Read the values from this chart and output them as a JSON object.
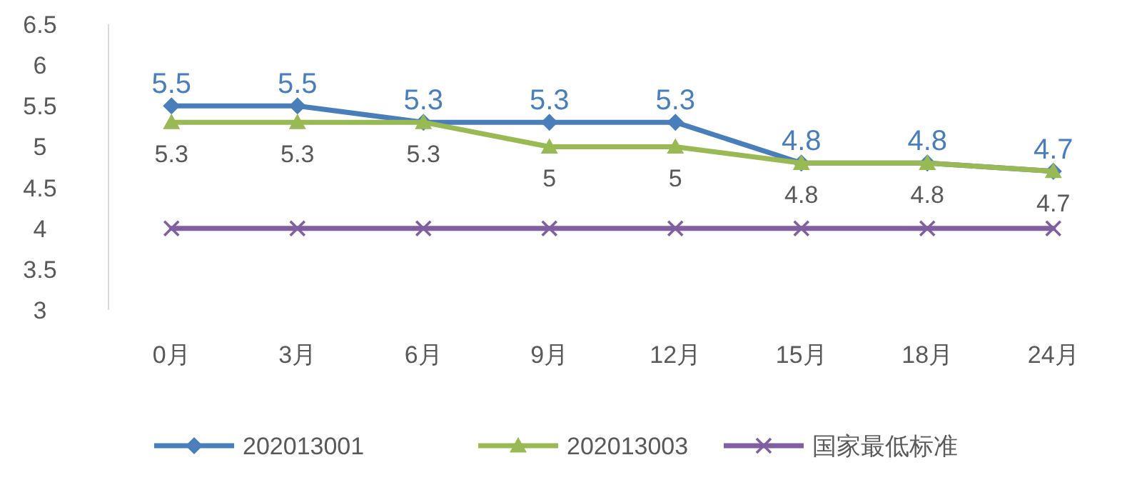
{
  "chart_data": {
    "type": "line",
    "categories": [
      "0月",
      "3月",
      "6月",
      "9月",
      "12月",
      "15月",
      "18月",
      "24月"
    ],
    "ylim": [
      3,
      6.5
    ],
    "yticks": [
      3,
      3.5,
      4,
      4.5,
      5,
      5.5,
      6,
      6.5
    ],
    "grid": false,
    "legend": "bottom",
    "series": [
      {
        "name": "202013001",
        "color": "#4a7ebb",
        "marker": "diamond",
        "values": [
          5.5,
          5.5,
          5.3,
          5.3,
          5.3,
          4.8,
          4.8,
          4.7
        ],
        "value_labels": [
          "5.5",
          "5.5",
          "5.3",
          "5.3",
          "5.3",
          "4.8",
          "4.8",
          "4.7"
        ]
      },
      {
        "name": "202013003",
        "color": "#98b954",
        "marker": "triangle",
        "values": [
          5.3,
          5.3,
          5.3,
          5,
          5,
          4.8,
          4.8,
          4.7
        ],
        "value_labels": [
          "5.3",
          "5.3",
          "5.3",
          "5",
          "5",
          "4.8",
          "4.8",
          "4.7"
        ]
      },
      {
        "name": "国家最低标准",
        "color": "#7f5f9f",
        "marker": "cross",
        "values": [
          4,
          4,
          4,
          4,
          4,
          4,
          4,
          4
        ]
      }
    ]
  }
}
